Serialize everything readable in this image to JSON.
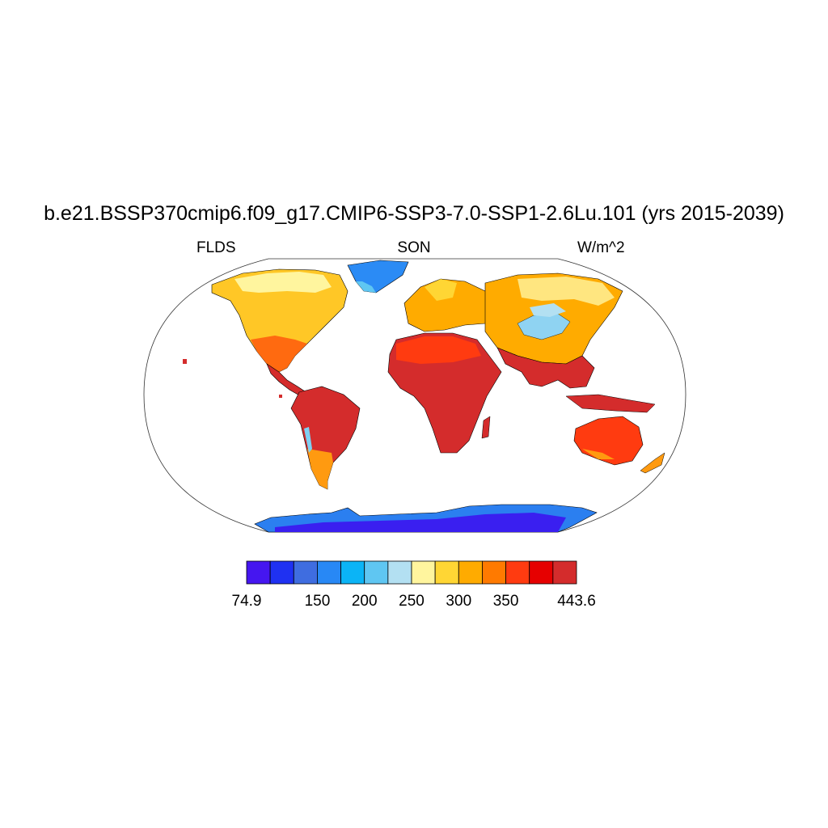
{
  "title": "b.e21.BSSP370cmip6.f09_g17.CMIP6-SSP3-7.0-SSP1-2.6Lu.101 (yrs 2015-2039)",
  "subtitle_left": "FLDS",
  "subtitle_center": "SON",
  "subtitle_right": "W/m^2",
  "colorbar": {
    "colors": [
      "#4516f0",
      "#1f31f2",
      "#3f6de0",
      "#2888f5",
      "#0bb4f6",
      "#5fc6f2",
      "#b3e0f2",
      "#fff59e",
      "#ffd634",
      "#ffab00",
      "#ff7a00",
      "#ff3b10",
      "#e60000",
      "#d42c2c"
    ],
    "labels": [
      {
        "text": "74.9",
        "boundary": 0
      },
      {
        "text": "150",
        "boundary": 3
      },
      {
        "text": "200",
        "boundary": 5
      },
      {
        "text": "250",
        "boundary": 7
      },
      {
        "text": "300",
        "boundary": 9
      },
      {
        "text": "350",
        "boundary": 11
      },
      {
        "text": "443.6",
        "boundary": 14
      }
    ]
  }
}
